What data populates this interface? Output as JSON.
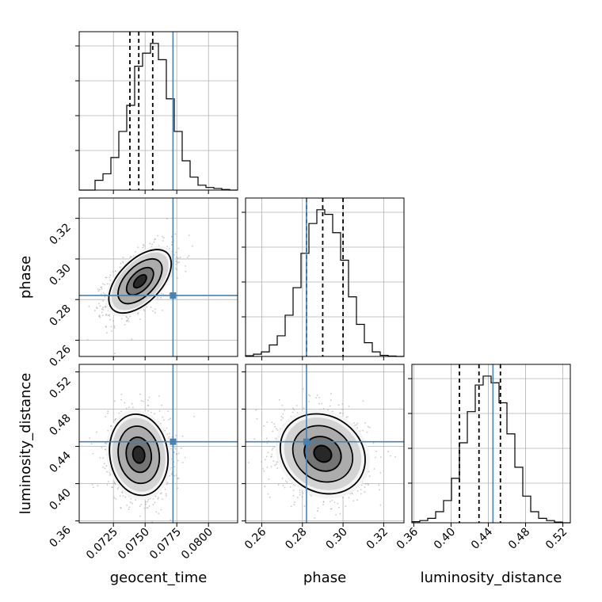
{
  "chart_data": {
    "type": "corner",
    "parameters": [
      "geocent_time",
      "phase",
      "luminosity_distance"
    ],
    "axis_labels": {
      "geocent_time": "geocent_time",
      "phase": "phase",
      "luminosity_distance": "luminosity_distance"
    },
    "ranges": {
      "geocent_time": [
        0.0698,
        0.0823
      ],
      "phase": [
        0.252,
        0.33
      ],
      "luminosity_distance": [
        0.358,
        0.528
      ]
    },
    "ticks": {
      "geocent_time": [
        "0.0725",
        "0.0750",
        "0.0775",
        "0.0800"
      ],
      "phase": [
        "0.26",
        "0.28",
        "0.30",
        "0.32"
      ],
      "luminosity_distance": [
        "0.36",
        "0.40",
        "0.44",
        "0.48",
        "0.52"
      ]
    },
    "truths": {
      "geocent_time": 0.0772,
      "phase": 0.282,
      "luminosity_distance": 0.445
    },
    "quantiles_dashed": {
      "geocent_time": [
        0.0738,
        0.0745,
        0.0756
      ],
      "phase": [
        0.282,
        0.29,
        0.3
      ],
      "luminosity_distance": [
        0.409,
        0.43,
        0.453
      ]
    },
    "histograms": {
      "geocent_time": {
        "range": [
          0.0698,
          0.0823
        ],
        "counts": [
          0,
          0,
          3,
          5,
          10,
          18,
          26,
          38,
          42,
          45,
          40,
          28,
          18,
          9,
          4,
          1.5,
          0.8,
          0.5,
          0.2,
          0
        ]
      },
      "phase": {
        "range": [
          0.252,
          0.33
        ],
        "counts": [
          0.3,
          1,
          2,
          5,
          9,
          18,
          30,
          45,
          58,
          64,
          62,
          54,
          42,
          26,
          14,
          6,
          2,
          0.5,
          0.2,
          0
        ]
      },
      "luminosity_distance": {
        "range": [
          0.358,
          0.528
        ],
        "counts": [
          0.5,
          1,
          2,
          5,
          10,
          20,
          36,
          50,
          62,
          66,
          63,
          54,
          40,
          25,
          12,
          5,
          2,
          1,
          0.3,
          0
        ]
      }
    },
    "contours_2d": [
      {
        "x": "geocent_time",
        "y": "phase",
        "center": [
          0.0746,
          0.289
        ],
        "sigma": [
          0.00112,
          0.0071
        ],
        "rho": 0.55
      },
      {
        "x": "geocent_time",
        "y": "luminosity_distance",
        "center": [
          0.0745,
          0.431
        ],
        "sigma": [
          0.00105,
          0.0198
        ],
        "rho": -0.1
      },
      {
        "x": "phase",
        "y": "luminosity_distance",
        "center": [
          0.29,
          0.432
        ],
        "sigma": [
          0.0095,
          0.0195
        ],
        "rho": -0.15
      }
    ]
  }
}
